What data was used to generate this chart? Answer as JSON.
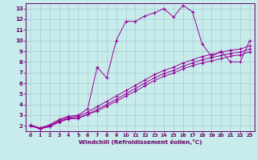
{
  "xlabel": "Windchill (Refroidissement éolien,°C)",
  "bg_color": "#c8ecec",
  "line_color": "#990099",
  "grid_color": "#aacccc",
  "axis_color": "#660066",
  "text_color": "#660066",
  "xlim": [
    -0.5,
    23.5
  ],
  "ylim": [
    1.5,
    13.5
  ],
  "xticks": [
    0,
    1,
    2,
    3,
    4,
    5,
    6,
    7,
    8,
    9,
    10,
    11,
    12,
    13,
    14,
    15,
    16,
    17,
    18,
    19,
    20,
    21,
    22,
    23
  ],
  "yticks": [
    2,
    3,
    4,
    5,
    6,
    7,
    8,
    9,
    10,
    11,
    12,
    13
  ],
  "line1_x": [
    0,
    1,
    2,
    3,
    4,
    5,
    6,
    7,
    8,
    9,
    10,
    11,
    12,
    13,
    14,
    15,
    16,
    17,
    18,
    19,
    20,
    21,
    22,
    23
  ],
  "line1_y": [
    2.1,
    1.8,
    2.1,
    2.6,
    2.9,
    3.0,
    3.6,
    7.5,
    6.5,
    10.0,
    11.8,
    11.8,
    12.3,
    12.6,
    13.0,
    12.2,
    13.3,
    12.7,
    9.7,
    8.5,
    9.0,
    8.0,
    8.0,
    10.0
  ],
  "line2_x": [
    0,
    1,
    2,
    3,
    4,
    5,
    6,
    7,
    8,
    9,
    10,
    11,
    12,
    13,
    14,
    15,
    16,
    17,
    18,
    19,
    20,
    21,
    22,
    23
  ],
  "line2_y": [
    2.0,
    1.8,
    2.0,
    2.5,
    2.8,
    2.9,
    3.3,
    3.8,
    4.3,
    4.8,
    5.3,
    5.8,
    6.3,
    6.8,
    7.2,
    7.5,
    7.9,
    8.2,
    8.5,
    8.7,
    8.9,
    9.1,
    9.2,
    9.5
  ],
  "line3_x": [
    0,
    1,
    2,
    3,
    4,
    5,
    6,
    7,
    8,
    9,
    10,
    11,
    12,
    13,
    14,
    15,
    16,
    17,
    18,
    19,
    20,
    21,
    22,
    23
  ],
  "line3_y": [
    2.0,
    1.75,
    1.95,
    2.4,
    2.7,
    2.75,
    3.1,
    3.55,
    4.0,
    4.5,
    5.0,
    5.5,
    6.0,
    6.5,
    6.9,
    7.2,
    7.6,
    7.9,
    8.2,
    8.4,
    8.6,
    8.8,
    8.9,
    9.2
  ],
  "line4_x": [
    0,
    1,
    2,
    3,
    4,
    5,
    6,
    7,
    8,
    9,
    10,
    11,
    12,
    13,
    14,
    15,
    16,
    17,
    18,
    19,
    20,
    21,
    22,
    23
  ],
  "line4_y": [
    2.0,
    1.72,
    1.92,
    2.35,
    2.65,
    2.7,
    3.05,
    3.4,
    3.85,
    4.3,
    4.8,
    5.25,
    5.75,
    6.25,
    6.65,
    6.95,
    7.35,
    7.65,
    7.9,
    8.1,
    8.3,
    8.55,
    8.65,
    8.95
  ]
}
